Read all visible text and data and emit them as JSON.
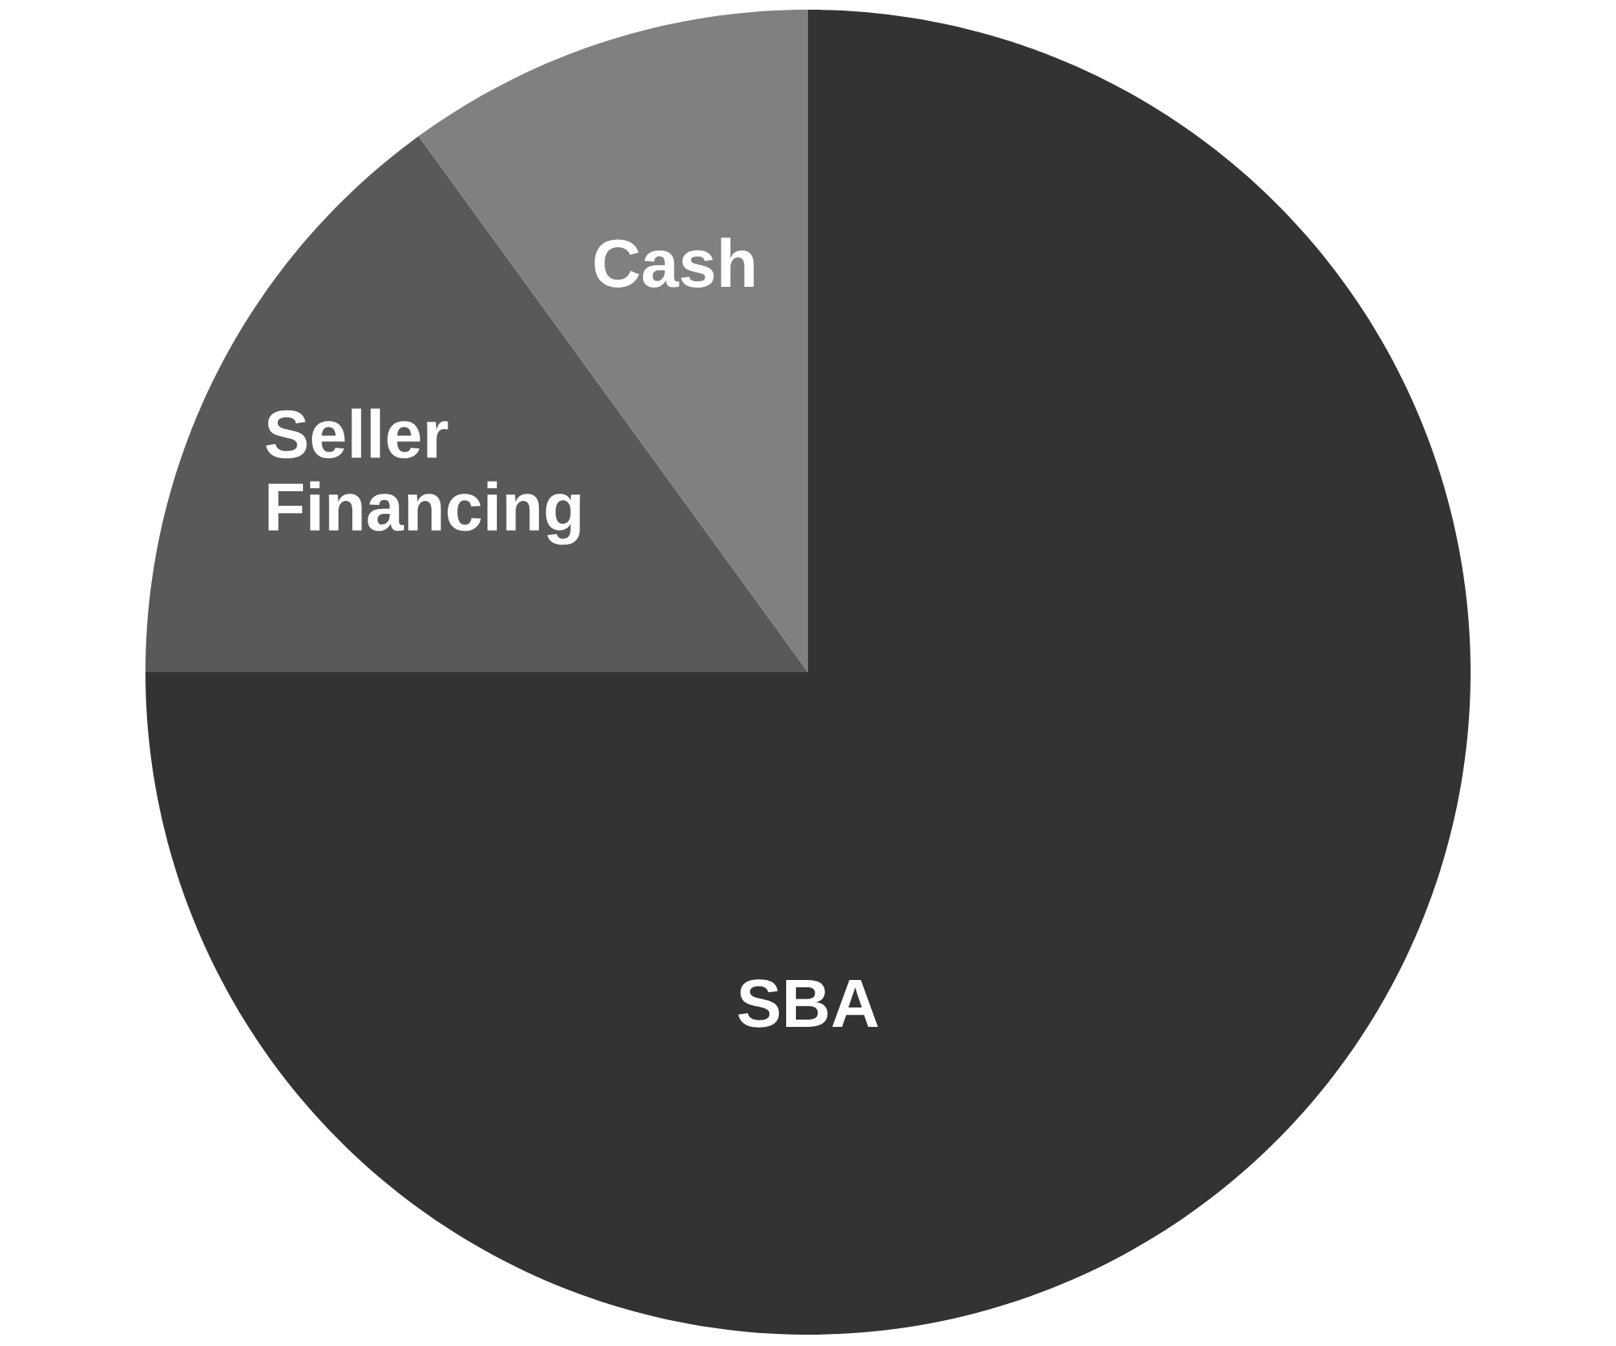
{
  "chart_data": {
    "type": "pie",
    "categories": [
      "SBA",
      "Seller Financing",
      "Cash"
    ],
    "values": [
      75,
      15,
      10
    ],
    "colors": [
      "#333333",
      "#595959",
      "#808080"
    ]
  }
}
